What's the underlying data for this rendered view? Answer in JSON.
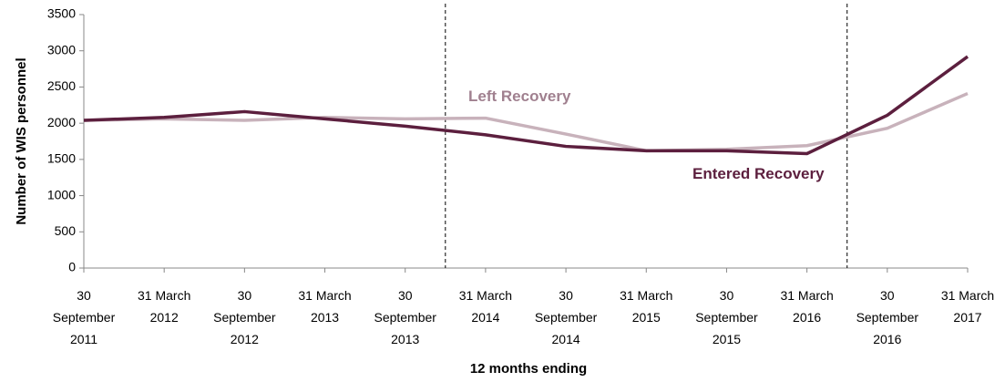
{
  "chart_data": {
    "type": "line",
    "y_axis_label": "Number of WIS personnel",
    "x_axis_label": "12 months ending",
    "categories": [
      [
        "30",
        "September",
        "2011"
      ],
      [
        "31 March",
        "2012"
      ],
      [
        "30",
        "September",
        "2012"
      ],
      [
        "31 March",
        "2013"
      ],
      [
        "30",
        "September",
        "2013"
      ],
      [
        "31 March",
        "2014"
      ],
      [
        "30",
        "September",
        "2014"
      ],
      [
        "31 March",
        "2015"
      ],
      [
        "30",
        "September",
        "2015"
      ],
      [
        "31 March",
        "2016"
      ],
      [
        "30",
        "September",
        "2016"
      ],
      [
        "31 March",
        "2017"
      ]
    ],
    "series": [
      {
        "name": "Entered Recovery",
        "color": "#5c1f3e",
        "values": [
          2040,
          2080,
          2160,
          2060,
          1960,
          1840,
          1680,
          1620,
          1620,
          1580,
          2110,
          2920
        ]
      },
      {
        "name": "Left Recovery",
        "color": "#c8b2bb",
        "values": [
          2040,
          2060,
          2040,
          2080,
          2060,
          2070,
          1850,
          1620,
          1640,
          1690,
          1930,
          2410
        ]
      }
    ],
    "ylim": [
      0,
      3500
    ],
    "yticks": [
      0,
      500,
      1000,
      1500,
      2000,
      2500,
      3000,
      3500
    ],
    "grid": false
  }
}
